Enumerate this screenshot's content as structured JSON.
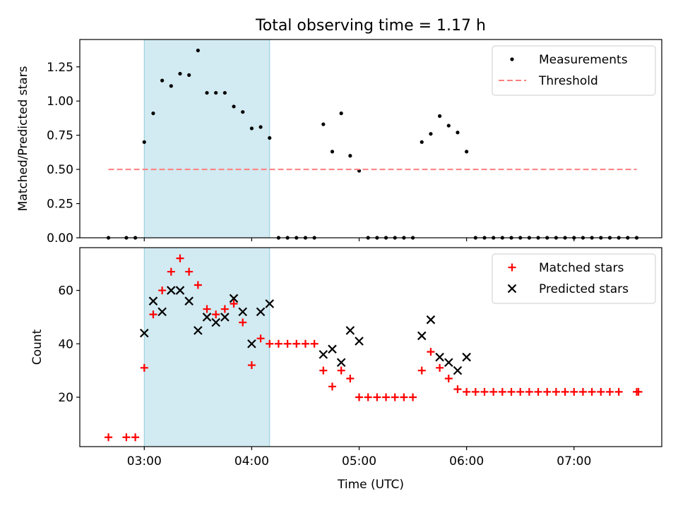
{
  "figure": {
    "title": "Total observing time = 1.17 h",
    "shade_color": "#add8e6",
    "xlabel": "Time (UTC)"
  },
  "chart_data": [
    {
      "type": "scatter",
      "ylabel": "Matched/Predicted stars",
      "xlim": [
        "02:24",
        "07:49"
      ],
      "ylim": [
        0,
        1.45
      ],
      "yticks": [
        0.0,
        0.25,
        0.5,
        0.75,
        1.0,
        1.25
      ],
      "ytick_labels": [
        "0.00",
        "0.25",
        "0.50",
        "0.75",
        "1.00",
        "1.25"
      ],
      "shaded_span": [
        "03:00",
        "04:10"
      ],
      "legend": {
        "placement": "top-right",
        "entries": [
          "Measurements",
          "Threshold"
        ]
      },
      "series": [
        {
          "name": "Measurements",
          "marker": "dot",
          "color": "#000000",
          "points": [
            [
              "02:40",
              0.0
            ],
            [
              "02:50",
              0.0
            ],
            [
              "02:55",
              0.0
            ],
            [
              "03:00",
              0.7
            ],
            [
              "03:05",
              0.91
            ],
            [
              "03:10",
              1.15
            ],
            [
              "03:15",
              1.11
            ],
            [
              "03:20",
              1.2
            ],
            [
              "03:25",
              1.19
            ],
            [
              "03:30",
              1.37
            ],
            [
              "03:35",
              1.06
            ],
            [
              "03:40",
              1.06
            ],
            [
              "03:45",
              1.06
            ],
            [
              "03:50",
              0.96
            ],
            [
              "03:55",
              0.92
            ],
            [
              "04:00",
              0.8
            ],
            [
              "04:05",
              0.81
            ],
            [
              "04:10",
              0.73
            ],
            [
              "04:15",
              0.0
            ],
            [
              "04:20",
              0.0
            ],
            [
              "04:25",
              0.0
            ],
            [
              "04:30",
              0.0
            ],
            [
              "04:35",
              0.0
            ],
            [
              "04:40",
              0.83
            ],
            [
              "04:45",
              0.63
            ],
            [
              "04:50",
              0.91
            ],
            [
              "04:55",
              0.6
            ],
            [
              "05:00",
              0.49
            ],
            [
              "05:05",
              0.0
            ],
            [
              "05:10",
              0.0
            ],
            [
              "05:15",
              0.0
            ],
            [
              "05:20",
              0.0
            ],
            [
              "05:25",
              0.0
            ],
            [
              "05:30",
              0.0
            ],
            [
              "05:35",
              0.7
            ],
            [
              "05:40",
              0.76
            ],
            [
              "05:45",
              0.89
            ],
            [
              "05:50",
              0.82
            ],
            [
              "05:55",
              0.77
            ],
            [
              "06:00",
              0.63
            ],
            [
              "06:05",
              0.0
            ],
            [
              "06:10",
              0.0
            ],
            [
              "06:15",
              0.0
            ],
            [
              "06:20",
              0.0
            ],
            [
              "06:25",
              0.0
            ],
            [
              "06:30",
              0.0
            ],
            [
              "06:35",
              0.0
            ],
            [
              "06:40",
              0.0
            ],
            [
              "06:45",
              0.0
            ],
            [
              "06:50",
              0.0
            ],
            [
              "06:55",
              0.0
            ],
            [
              "07:00",
              0.0
            ],
            [
              "07:05",
              0.0
            ],
            [
              "07:10",
              0.0
            ],
            [
              "07:15",
              0.0
            ],
            [
              "07:20",
              0.0
            ],
            [
              "07:25",
              0.0
            ],
            [
              "07:30",
              0.0
            ],
            [
              "07:35",
              0.0
            ]
          ]
        },
        {
          "name": "Threshold",
          "kind": "dashed-line",
          "color": "#ff7f7f",
          "points": [
            [
              "02:40",
              0.5
            ],
            [
              "07:35",
              0.5
            ]
          ]
        }
      ]
    },
    {
      "type": "scatter",
      "ylabel": "Count",
      "xlim": [
        "02:24",
        "07:49"
      ],
      "ylim": [
        1.5,
        76
      ],
      "yticks": [
        20,
        40,
        60
      ],
      "ytick_labels": [
        "20",
        "40",
        "60"
      ],
      "xticks": [
        "03:00",
        "04:00",
        "05:00",
        "06:00",
        "07:00"
      ],
      "xtick_labels": [
        "03:00",
        "04:00",
        "05:00",
        "06:00",
        "07:00"
      ],
      "shaded_span": [
        "03:00",
        "04:10"
      ],
      "legend": {
        "placement": "top-right",
        "entries": [
          "Matched stars",
          "Predicted stars"
        ]
      },
      "series": [
        {
          "name": "Matched stars",
          "marker": "plus",
          "color": "#ff0000",
          "points": [
            [
              "02:40",
              5
            ],
            [
              "02:50",
              5
            ],
            [
              "02:55",
              5
            ],
            [
              "03:00",
              31
            ],
            [
              "03:05",
              51
            ],
            [
              "03:10",
              60
            ],
            [
              "03:15",
              67
            ],
            [
              "03:20",
              72
            ],
            [
              "03:25",
              67
            ],
            [
              "03:30",
              62
            ],
            [
              "03:35",
              53
            ],
            [
              "03:40",
              51
            ],
            [
              "03:45",
              53
            ],
            [
              "03:50",
              55
            ],
            [
              "03:55",
              48
            ],
            [
              "04:00",
              32
            ],
            [
              "04:05",
              42
            ],
            [
              "04:10",
              40
            ],
            [
              "04:15",
              40
            ],
            [
              "04:20",
              40
            ],
            [
              "04:25",
              40
            ],
            [
              "04:30",
              40
            ],
            [
              "04:35",
              40
            ],
            [
              "04:40",
              30
            ],
            [
              "04:45",
              24
            ],
            [
              "04:50",
              30
            ],
            [
              "04:55",
              27
            ],
            [
              "05:00",
              20
            ],
            [
              "05:05",
              20
            ],
            [
              "05:10",
              20
            ],
            [
              "05:15",
              20
            ],
            [
              "05:20",
              20
            ],
            [
              "05:25",
              20
            ],
            [
              "05:30",
              20
            ],
            [
              "05:35",
              30
            ],
            [
              "05:40",
              37
            ],
            [
              "05:45",
              31
            ],
            [
              "05:50",
              27
            ],
            [
              "05:55",
              23
            ],
            [
              "06:00",
              22
            ],
            [
              "06:05",
              22
            ],
            [
              "06:10",
              22
            ],
            [
              "06:15",
              22
            ],
            [
              "06:20",
              22
            ],
            [
              "06:25",
              22
            ],
            [
              "06:30",
              22
            ],
            [
              "06:35",
              22
            ],
            [
              "06:40",
              22
            ],
            [
              "06:45",
              22
            ],
            [
              "06:50",
              22
            ],
            [
              "06:55",
              22
            ],
            [
              "07:00",
              22
            ],
            [
              "07:05",
              22
            ],
            [
              "07:10",
              22
            ],
            [
              "07:15",
              22
            ],
            [
              "07:20",
              22
            ],
            [
              "07:25",
              22
            ],
            [
              "07:35",
              22
            ],
            [
              "07:36",
              22
            ]
          ]
        },
        {
          "name": "Predicted stars",
          "marker": "x",
          "color": "#000000",
          "points": [
            [
              "03:00",
              44
            ],
            [
              "03:05",
              56
            ],
            [
              "03:10",
              52
            ],
            [
              "03:15",
              60
            ],
            [
              "03:20",
              60
            ],
            [
              "03:25",
              56
            ],
            [
              "03:30",
              45
            ],
            [
              "03:35",
              50
            ],
            [
              "03:40",
              48
            ],
            [
              "03:45",
              50
            ],
            [
              "03:50",
              57
            ],
            [
              "03:55",
              52
            ],
            [
              "04:00",
              40
            ],
            [
              "04:05",
              52
            ],
            [
              "04:10",
              55
            ],
            [
              "04:40",
              36
            ],
            [
              "04:45",
              38
            ],
            [
              "04:50",
              33
            ],
            [
              "04:55",
              45
            ],
            [
              "05:00",
              41
            ],
            [
              "05:35",
              43
            ],
            [
              "05:40",
              49
            ],
            [
              "05:45",
              35
            ],
            [
              "05:50",
              33
            ],
            [
              "05:55",
              30
            ],
            [
              "06:00",
              35
            ]
          ]
        }
      ]
    }
  ]
}
